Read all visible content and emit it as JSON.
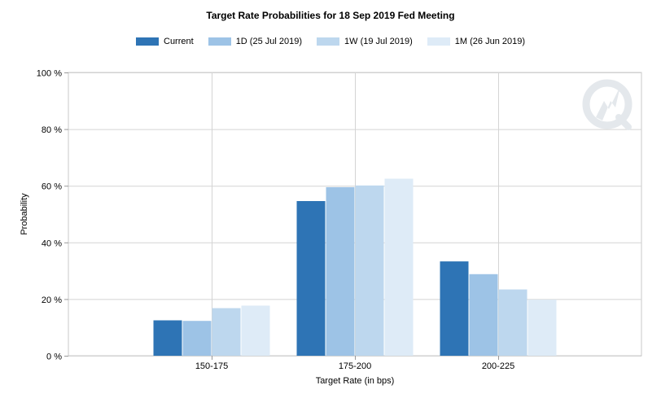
{
  "chart_data": {
    "type": "bar",
    "title": "Target Rate Probabilities for 18 Sep 2019 Fed Meeting",
    "xlabel": "Target Rate (in bps)",
    "ylabel": "Probability",
    "categories": [
      "150-175",
      "175-200",
      "200-225"
    ],
    "series": [
      {
        "name": "Current",
        "values": [
          12.5,
          54.6,
          33.3
        ],
        "color": "#2e74b5"
      },
      {
        "name": "1D (25 Jul 2019)",
        "values": [
          12.3,
          59.5,
          28.8
        ],
        "color": "#9dc3e6"
      },
      {
        "name": "1W (19 Jul 2019)",
        "values": [
          16.8,
          60.1,
          23.4
        ],
        "color": "#bdd7ee"
      },
      {
        "name": "1M (26 Jun 2019)",
        "values": [
          17.7,
          62.5,
          19.8
        ],
        "color": "#deebf7"
      }
    ],
    "ylim": [
      0,
      100
    ],
    "yticks": [
      "0 %",
      "20 %",
      "40 %",
      "60 %",
      "80 %",
      "100 %"
    ],
    "grid": true,
    "legend": "top-center"
  },
  "watermark": "cme-group-logo-icon"
}
